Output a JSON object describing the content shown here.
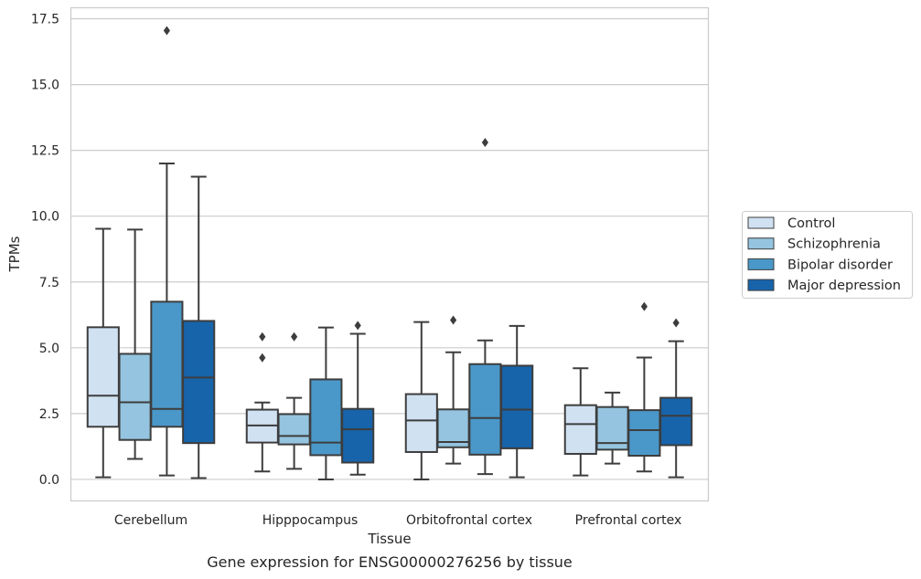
{
  "caption": "Gene expression for ENSG00000276256 by tissue",
  "chart_data": {
    "type": "box",
    "xlabel": "Tissue",
    "ylabel": "TPMs",
    "ylim": [
      -0.8,
      17.9
    ],
    "yticks": [
      "0.0",
      "2.5",
      "5.0",
      "7.5",
      "10.0",
      "12.5",
      "15.0",
      "17.5"
    ],
    "grid": "horizontal",
    "legend_position": "right-center",
    "categories": [
      "Cerebellum",
      "Hipppocampus",
      "Orbitofrontal cortex",
      "Prefrontal cortex"
    ],
    "series": [
      {
        "name": "Control",
        "color": "#d0e1f2",
        "boxes": [
          {
            "whislo": 0.08,
            "q1": 2.0,
            "med": 3.18,
            "q3": 5.78,
            "whishi": 9.52,
            "fliers": []
          },
          {
            "whislo": 0.3,
            "q1": 1.4,
            "med": 2.05,
            "q3": 2.65,
            "whishi": 2.92,
            "fliers": [
              4.62,
              5.42
            ]
          },
          {
            "whislo": 0.0,
            "q1": 1.04,
            "med": 2.24,
            "q3": 3.24,
            "whishi": 5.98,
            "fliers": []
          },
          {
            "whislo": 0.15,
            "q1": 0.97,
            "med": 2.1,
            "q3": 2.82,
            "whishi": 4.22,
            "fliers": []
          }
        ]
      },
      {
        "name": "Schizophrenia",
        "color": "#94c4df",
        "boxes": [
          {
            "whislo": 0.78,
            "q1": 1.5,
            "med": 2.93,
            "q3": 4.77,
            "whishi": 9.49,
            "fliers": []
          },
          {
            "whislo": 0.4,
            "q1": 1.33,
            "med": 1.65,
            "q3": 2.48,
            "whishi": 3.1,
            "fliers": [
              5.42
            ]
          },
          {
            "whislo": 0.6,
            "q1": 1.22,
            "med": 1.42,
            "q3": 2.66,
            "whishi": 4.83,
            "fliers": [
              6.05
            ]
          },
          {
            "whislo": 0.6,
            "q1": 1.13,
            "med": 1.38,
            "q3": 2.75,
            "whishi": 3.3,
            "fliers": []
          }
        ]
      },
      {
        "name": "Bipolar disorder",
        "color": "#4a98c9",
        "boxes": [
          {
            "whislo": 0.15,
            "q1": 2.0,
            "med": 2.68,
            "q3": 6.75,
            "whishi": 12.0,
            "fliers": [
              17.05
            ]
          },
          {
            "whislo": 0.0,
            "q1": 0.92,
            "med": 1.4,
            "q3": 3.8,
            "whishi": 5.77,
            "fliers": []
          },
          {
            "whislo": 0.2,
            "q1": 0.94,
            "med": 2.33,
            "q3": 4.38,
            "whishi": 5.28,
            "fliers": [
              12.8
            ]
          },
          {
            "whislo": 0.3,
            "q1": 0.9,
            "med": 1.87,
            "q3": 2.63,
            "whishi": 4.63,
            "fliers": [
              6.57
            ]
          }
        ]
      },
      {
        "name": "Major depression",
        "color": "#1764ab",
        "boxes": [
          {
            "whislo": 0.05,
            "q1": 1.38,
            "med": 3.87,
            "q3": 6.02,
            "whishi": 11.5,
            "fliers": []
          },
          {
            "whislo": 0.18,
            "q1": 0.64,
            "med": 1.9,
            "q3": 2.68,
            "whishi": 5.53,
            "fliers": [
              5.85
            ]
          },
          {
            "whislo": 0.08,
            "q1": 1.18,
            "med": 2.65,
            "q3": 4.32,
            "whishi": 5.83,
            "fliers": []
          },
          {
            "whislo": 0.08,
            "q1": 1.3,
            "med": 2.42,
            "q3": 3.1,
            "whishi": 5.25,
            "fliers": [
              5.95
            ]
          }
        ]
      }
    ]
  }
}
